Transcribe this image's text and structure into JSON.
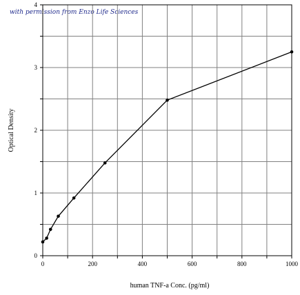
{
  "note": "with permission from Enzo Life Sciences",
  "chart_data": {
    "type": "line",
    "title": "",
    "xlabel": "human TNF-a Conc. (pg/ml)",
    "ylabel": "Optical Density",
    "xlim": [
      0,
      1000
    ],
    "ylim": [
      0,
      4
    ],
    "grid": true,
    "x_ticks": [
      0,
      200,
      400,
      600,
      800,
      1000
    ],
    "y_ticks": [
      0,
      1,
      2,
      3,
      4
    ],
    "series": [
      {
        "x": [
          0,
          15.6,
          31.2,
          62.5,
          125,
          250,
          500,
          1000
        ],
        "y": [
          0.22,
          0.28,
          0.42,
          0.63,
          0.92,
          1.48,
          2.48,
          3.25
        ]
      }
    ]
  }
}
